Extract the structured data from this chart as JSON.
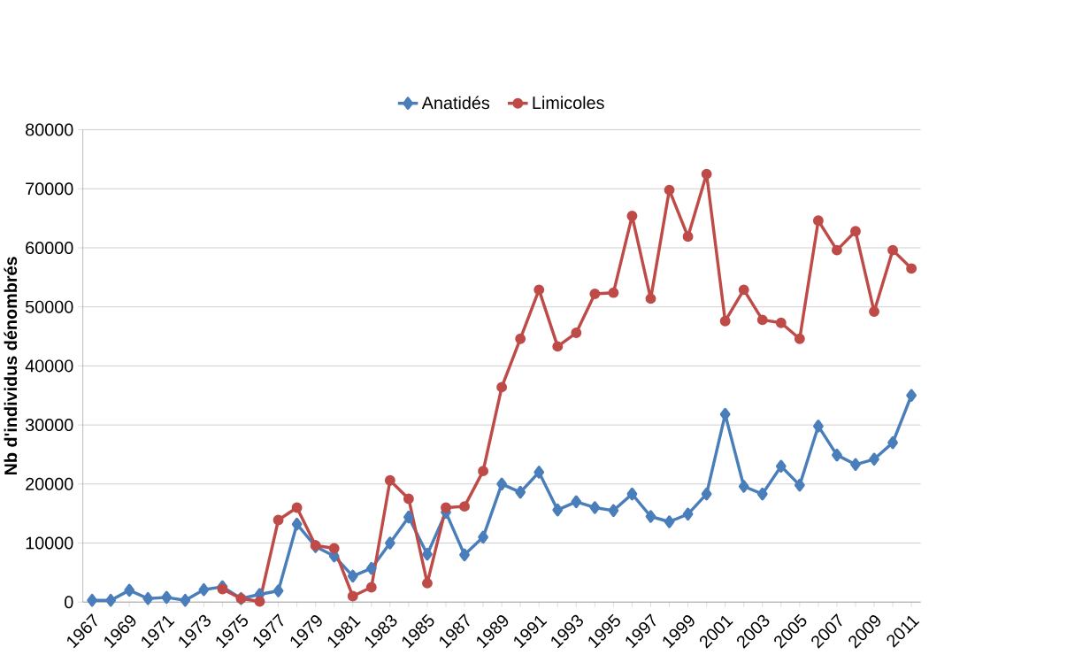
{
  "chart_data": {
    "type": "line",
    "ylabel": "Nb d'individus dénombrés",
    "categories": [
      "1967",
      null,
      "1969",
      null,
      "1971",
      null,
      "1973",
      null,
      "1975",
      null,
      "1977",
      null,
      "1979",
      null,
      "1981",
      null,
      "1983",
      null,
      "1985",
      null,
      "1987",
      null,
      "1989",
      null,
      "1991",
      null,
      "1993",
      null,
      "1995",
      null,
      "1997",
      null,
      "1999",
      null,
      "2001",
      null,
      "2003",
      null,
      "2005",
      null,
      "2007",
      null,
      "2009",
      null,
      "2011"
    ],
    "series": [
      {
        "name": "Anatidés",
        "color": "#4a7ebb",
        "marker": "diamond",
        "values": [
          300,
          300,
          2000,
          600,
          800,
          300,
          2100,
          2600,
          600,
          1300,
          1900,
          13200,
          9400,
          7800,
          4400,
          5700,
          10000,
          14400,
          8100,
          15200,
          8000,
          11000,
          20000,
          18600,
          22000,
          15600,
          17000,
          16000,
          15500,
          18300,
          14500,
          13600,
          14900,
          18300,
          31800,
          19600,
          18300,
          23000,
          19800,
          29800,
          24900,
          23300,
          24200,
          27000,
          35000
        ]
      },
      {
        "name": "Limicoles",
        "color": "#be4b48",
        "marker": "circle",
        "values": [
          null,
          null,
          null,
          null,
          null,
          null,
          null,
          2200,
          600,
          100,
          13900,
          16000,
          9600,
          9100,
          1000,
          2500,
          20600,
          17500,
          3200,
          16000,
          16200,
          22200,
          36400,
          44600,
          52900,
          43300,
          45600,
          52200,
          52400,
          65400,
          51400,
          69800,
          61900,
          72500,
          47600,
          52900,
          47800,
          47300,
          44600,
          64600,
          59600,
          62800,
          49200,
          59600,
          56500
        ]
      }
    ],
    "ylim": [
      0,
      80000
    ],
    "yticks": [
      0,
      10000,
      20000,
      30000,
      40000,
      50000,
      60000,
      70000,
      80000
    ],
    "grid": "y",
    "legend": "top",
    "line_style": "solid"
  }
}
